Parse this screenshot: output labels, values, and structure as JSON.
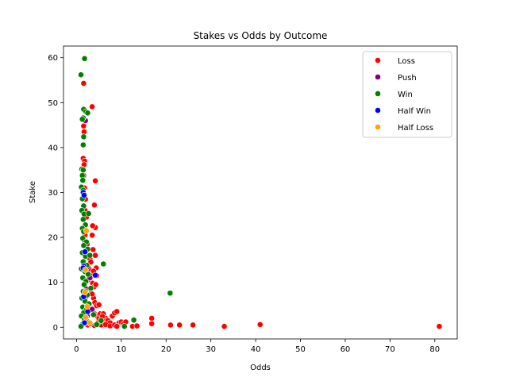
{
  "chart_data": {
    "type": "scatter",
    "title": "Stakes vs Odds by Outcome",
    "xlabel": "Odds",
    "ylabel": "Stake",
    "xlim": [
      -2.9,
      85
    ],
    "ylim": [
      -2.6,
      62.6
    ],
    "xticks": [
      0,
      10,
      20,
      30,
      40,
      50,
      60,
      70,
      80
    ],
    "yticks": [
      0,
      10,
      20,
      30,
      40,
      50,
      60
    ],
    "grid": false,
    "legend": "top-right",
    "series": [
      {
        "name": "Loss",
        "color": "#ff0000",
        "points": [
          [
            1.6,
            54.3
          ],
          [
            1.6,
            44.8
          ],
          [
            1.7,
            43.5
          ],
          [
            1.5,
            37.6
          ],
          [
            1.8,
            37.0
          ],
          [
            1.7,
            36.2
          ],
          [
            1.6,
            33.8
          ],
          [
            1.8,
            31.0
          ],
          [
            2.0,
            28.5
          ],
          [
            1.9,
            26.0
          ],
          [
            2.2,
            24.5
          ],
          [
            1.7,
            22.0
          ],
          [
            1.9,
            20.5
          ],
          [
            2.4,
            18.5
          ],
          [
            2.6,
            16.0
          ],
          [
            3.0,
            15.2
          ],
          [
            3.2,
            14.5
          ],
          [
            2.8,
            13.0
          ],
          [
            2.2,
            12.2
          ],
          [
            3.4,
            11.5
          ],
          [
            2.5,
            10.5
          ],
          [
            3.6,
            9.8
          ],
          [
            3.9,
            9.0
          ],
          [
            2.9,
            8.5
          ],
          [
            3.2,
            7.5
          ],
          [
            2.4,
            7.0
          ],
          [
            3.8,
            6.5
          ],
          [
            4.1,
            5.5
          ],
          [
            4.5,
            4.8
          ],
          [
            3.4,
            4.2
          ],
          [
            2.6,
            3.5
          ],
          [
            4.0,
            3.0
          ],
          [
            4.6,
            2.5
          ],
          [
            5.0,
            2.0
          ],
          [
            5.5,
            1.6
          ],
          [
            6.0,
            1.2
          ],
          [
            3.5,
            49.1
          ],
          [
            4.2,
            32.6
          ],
          [
            4.0,
            27.2
          ],
          [
            4.2,
            22.2
          ],
          [
            3.6,
            22.6
          ],
          [
            3.5,
            20.5
          ],
          [
            3.7,
            17.3
          ],
          [
            4.2,
            16.0
          ],
          [
            4.4,
            13.2
          ],
          [
            3.8,
            12.5
          ],
          [
            4.5,
            11.5
          ],
          [
            4.3,
            9.5
          ],
          [
            3.5,
            7.4
          ],
          [
            2.1,
            6.8
          ],
          [
            5.0,
            5.0
          ],
          [
            5.3,
            3.0
          ],
          [
            6.0,
            3.0
          ],
          [
            6.5,
            2.0
          ],
          [
            7.0,
            1.5
          ],
          [
            7.5,
            1.0
          ],
          [
            8.0,
            2.5
          ],
          [
            8.5,
            3.2
          ],
          [
            9.0,
            3.5
          ],
          [
            9.5,
            1.0
          ],
          [
            10.0,
            1.2
          ],
          [
            10.5,
            0.8
          ],
          [
            11.0,
            1.2
          ],
          [
            12.5,
            0.2
          ],
          [
            13.5,
            0.3
          ],
          [
            16.8,
            2.0
          ],
          [
            16.8,
            0.8
          ],
          [
            21.0,
            0.5
          ],
          [
            23.0,
            0.5
          ],
          [
            26.0,
            0.5
          ],
          [
            33.0,
            0.2
          ],
          [
            41.0,
            0.6
          ],
          [
            81.0,
            0.2
          ],
          [
            5.5,
            0.5
          ],
          [
            6.5,
            0.6
          ],
          [
            7.5,
            0.3
          ],
          [
            8.5,
            0.5
          ],
          [
            9.0,
            0.2
          ],
          [
            3.0,
            0.8
          ],
          [
            2.5,
            0.5
          ],
          [
            4.0,
            0.4
          ],
          [
            1.8,
            0.9
          ],
          [
            4.8,
            1.0
          ],
          [
            5.8,
            2.4
          ]
        ]
      },
      {
        "name": "Push",
        "color": "#800080",
        "points": [
          [
            2.0,
            46.0
          ],
          [
            1.9,
            19.0
          ],
          [
            2.5,
            13.5
          ],
          [
            3.0,
            11.0
          ],
          [
            2.2,
            8.5
          ],
          [
            1.6,
            6.5
          ],
          [
            2.8,
            5.0
          ],
          [
            3.5,
            4.0
          ],
          [
            2.4,
            2.5
          ],
          [
            1.8,
            1.5
          ],
          [
            3.1,
            0.8
          ]
        ]
      },
      {
        "name": "Win",
        "color": "#008000",
        "points": [
          [
            1.8,
            59.8
          ],
          [
            1.0,
            56.2
          ],
          [
            1.6,
            48.5
          ],
          [
            2.1,
            48.0
          ],
          [
            2.5,
            47.7
          ],
          [
            1.5,
            46.6
          ],
          [
            1.3,
            46.3
          ],
          [
            1.6,
            42.4
          ],
          [
            1.5,
            40.6
          ],
          [
            1.2,
            35.2
          ],
          [
            1.5,
            35.0
          ],
          [
            1.3,
            33.8
          ],
          [
            1.4,
            32.7
          ],
          [
            1.1,
            31.2
          ],
          [
            1.5,
            30.5
          ],
          [
            1.3,
            28.6
          ],
          [
            1.6,
            27.0
          ],
          [
            1.2,
            26.0
          ],
          [
            1.7,
            25.2
          ],
          [
            2.7,
            25.3
          ],
          [
            1.5,
            24.0
          ],
          [
            2.0,
            22.8
          ],
          [
            1.3,
            22.0
          ],
          [
            1.6,
            21.3
          ],
          [
            1.4,
            19.8
          ],
          [
            2.2,
            19.0
          ],
          [
            1.6,
            18.2
          ],
          [
            2.5,
            17.4
          ],
          [
            1.3,
            16.6
          ],
          [
            2.0,
            15.8
          ],
          [
            3.0,
            16.0
          ],
          [
            1.5,
            14.6
          ],
          [
            2.3,
            13.8
          ],
          [
            1.1,
            13.0
          ],
          [
            1.9,
            12.4
          ],
          [
            2.6,
            11.8
          ],
          [
            1.4,
            11.0
          ],
          [
            2.1,
            10.2
          ],
          [
            1.7,
            9.5
          ],
          [
            3.2,
            8.7
          ],
          [
            1.5,
            8.0
          ],
          [
            2.4,
            7.2
          ],
          [
            1.2,
            6.5
          ],
          [
            1.9,
            5.8
          ],
          [
            2.8,
            5.2
          ],
          [
            1.4,
            4.5
          ],
          [
            2.2,
            3.9
          ],
          [
            1.6,
            3.2
          ],
          [
            1.1,
            2.5
          ],
          [
            1.8,
            1.8
          ],
          [
            2.5,
            1.2
          ],
          [
            1.3,
            0.6
          ],
          [
            1.0,
            0.2
          ],
          [
            6.0,
            14.1
          ],
          [
            20.9,
            7.6
          ],
          [
            12.8,
            1.6
          ],
          [
            10.7,
            0.2
          ],
          [
            4.5,
            0.6
          ],
          [
            5.5,
            1.5
          ],
          [
            3.8,
            2.8
          ]
        ]
      },
      {
        "name": "Half Win",
        "color": "#0000ff",
        "points": [
          [
            1.5,
            30.0
          ],
          [
            1.7,
            29.4
          ],
          [
            1.9,
            16.8
          ],
          [
            1.6,
            13.6
          ],
          [
            1.5,
            13.2
          ],
          [
            2.0,
            8.0
          ],
          [
            1.6,
            6.8
          ],
          [
            4.2,
            11.6
          ],
          [
            2.5,
            3.5
          ],
          [
            1.8,
            1.0
          ]
        ]
      },
      {
        "name": "Half Loss",
        "color": "#ffa500",
        "points": [
          [
            2.2,
            21.5
          ],
          [
            2.0,
            12.8
          ],
          [
            1.9,
            7.8
          ],
          [
            2.4,
            4.6
          ],
          [
            2.1,
            2.2
          ],
          [
            3.0,
            1.0
          ]
        ]
      }
    ]
  }
}
